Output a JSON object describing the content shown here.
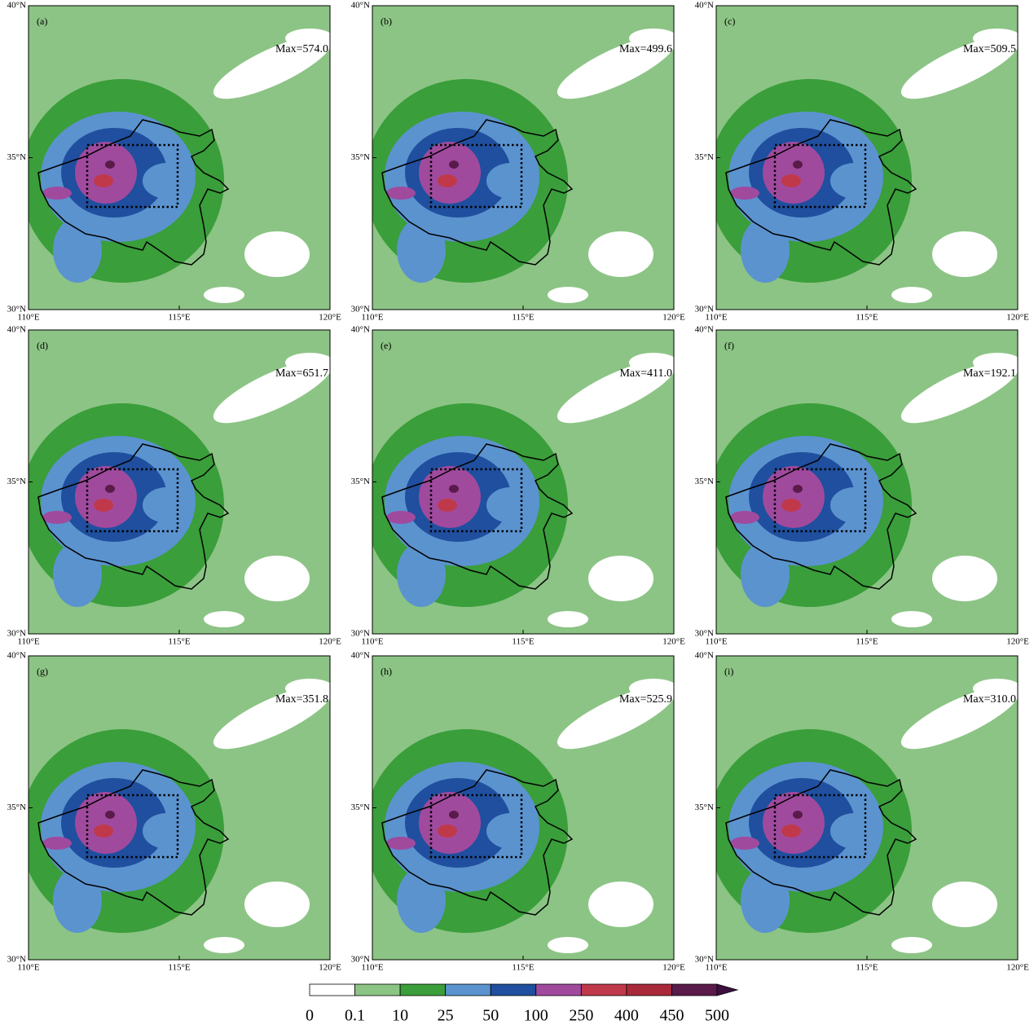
{
  "panels": [
    {
      "label": "(a)",
      "max": "Max=574.0"
    },
    {
      "label": "(b)",
      "max": "Max=499.6"
    },
    {
      "label": "(c)",
      "max": "Max=509.5"
    },
    {
      "label": "(d)",
      "max": "Max=651.7"
    },
    {
      "label": "(e)",
      "max": "Max=411.0"
    },
    {
      "label": "(f)",
      "max": "Max=192.1"
    },
    {
      "label": "(g)",
      "max": "Max=351.8"
    },
    {
      "label": "(h)",
      "max": "Max=525.9"
    },
    {
      "label": "(i)",
      "max": "Max=310.0"
    }
  ],
  "axes": {
    "xtick_labels": [
      "110°E",
      "115°E",
      "120°E"
    ],
    "ytick_labels": [
      "30°N",
      "35°N",
      "40°N"
    ]
  },
  "colorbar": {
    "levels": [
      0,
      0.1,
      10,
      25,
      50,
      100,
      250,
      400,
      450,
      500
    ],
    "colors": [
      "#ffffff",
      "#8cc485",
      "#3a9e3a",
      "#5b93cf",
      "#1f4f9e",
      "#a04a9e",
      "#c0394a",
      "#a82a3a",
      "#5a1a4a",
      "#3d1040"
    ]
  }
}
